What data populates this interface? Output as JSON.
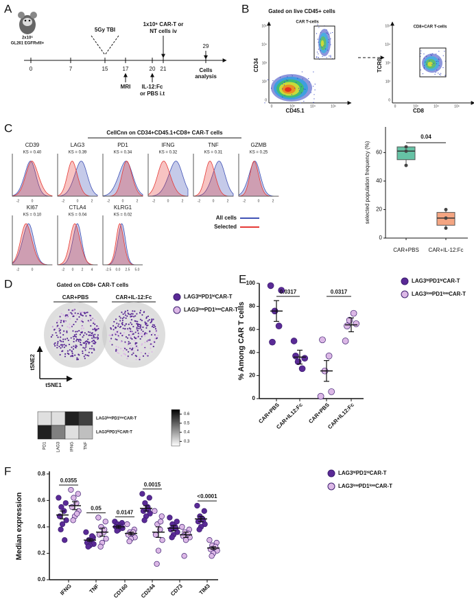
{
  "panel_a": {
    "letter": "A",
    "mouse_label": [
      "2x10⁶",
      "GL261 EGFRvIII+"
    ],
    "days": [
      0,
      7,
      15,
      17,
      20,
      21,
      29
    ],
    "tbi": "5Gy TBI",
    "cart": [
      "1x10⁶ CAR-T or",
      "NT cells iv"
    ],
    "mri": "MRI",
    "treatment": [
      "IL-12:Fc",
      "or PBS i.t"
    ],
    "analysis": [
      "Cells",
      "analysis"
    ]
  },
  "panel_b": {
    "letter": "B",
    "title": "Gated on live CD45+ cells",
    "plots": [
      {
        "gate": "CAR T-cells",
        "x_label": "CD45.1",
        "y_label": "CD34"
      },
      {
        "gate": "CD8+CAR T-cells",
        "x_label": "CD8",
        "y_label": "TCRß"
      }
    ],
    "x_ticks": [
      "0",
      "10³",
      "10⁴",
      "10⁵"
    ],
    "y_ticks": [
      "0",
      "10²",
      "10³",
      "10⁴",
      "10⁵"
    ]
  },
  "panel_c": {
    "letter": "C",
    "title": "CellCnn on CD34+CD45.1+CD8+ CAR-T cells",
    "histograms": [
      {
        "marker": "CD39",
        "ks": "KS = 0.40",
        "ticks": [
          "-2",
          "0"
        ]
      },
      {
        "marker": "LAG3",
        "ks": "KS = 0.39",
        "ticks": [
          "-2",
          "0",
          "2"
        ]
      },
      {
        "marker": "PD1",
        "ks": "KS = 0.34",
        "ticks": [
          "-2",
          "0",
          "2"
        ]
      },
      {
        "marker": "IFNG",
        "ks": "KS = 0.32",
        "ticks": [
          "-2",
          "0",
          "2"
        ]
      },
      {
        "marker": "TNF",
        "ks": "KS = 0.31",
        "ticks": [
          "-2",
          "0",
          "2"
        ]
      },
      {
        "marker": "GZMB",
        "ks": "KS = 0.25",
        "ticks": [
          "-2",
          "0",
          "2"
        ]
      },
      {
        "marker": "KI67",
        "ks": "KS = 0.10",
        "ticks": [
          "-2",
          "0"
        ]
      },
      {
        "marker": "CTLA4",
        "ks": "KS = 0.04",
        "ticks": [
          "-2",
          "0",
          "2",
          "4"
        ]
      },
      {
        "marker": "KLRG1",
        "ks": "KS = 0.02",
        "ticks": [
          "-2.5",
          "0.0",
          "2.5",
          "5.0"
        ]
      }
    ],
    "legend": [
      {
        "name": "All cells",
        "color": "#3f51b5"
      },
      {
        "name": "Selected",
        "color": "#e53935"
      }
    ]
  },
  "panel_d": {
    "letter": "D",
    "title": "Gated on CD8+ CAR-T cells",
    "groups": [
      "CAR+PBS",
      "CAR+IL-12:Fc"
    ],
    "axes": [
      "tSNE2",
      "tSNE1"
    ],
    "legend": [
      {
        "name": "LAG3ʰⁱPD1ʰⁱCAR-T",
        "color": "#5a2a96"
      },
      {
        "name": "LAG3ˡᵒʷPD1ˡᵒʷCAR-T",
        "color": "#dcb8e6"
      }
    ]
  },
  "panel_e": {
    "letter": "E"
  },
  "panel_f": {
    "letter": "F"
  },
  "chart_data": [
    {
      "type": "box",
      "y_label": "selected population frequency (%)",
      "categories": [
        "CAR+PBS",
        "CAR+IL-12:Fc"
      ],
      "colors": [
        "#66c2a5",
        "#f4a582"
      ],
      "boxes": [
        {
          "min": 51,
          "q1": 55,
          "median": 61,
          "q3": 64,
          "max": 65
        },
        {
          "min": 6,
          "q1": 9,
          "median": 14,
          "q3": 18,
          "max": 21
        }
      ],
      "points": [
        [
          51,
          61,
          64
        ],
        [
          7,
          14,
          20
        ]
      ],
      "p_value": "0.04",
      "ylim": [
        0,
        78
      ],
      "yticks": [
        0,
        20,
        40,
        60
      ]
    },
    {
      "type": "heatmap",
      "columns": [
        "PD1",
        "LAG3",
        "IFNG",
        "TNF"
      ],
      "rows": [
        "LAG3ˡᵒʷPD1ˡᵒʷCAR-T",
        "LAG3ʰⁱPD1ʰⁱCAR-T"
      ],
      "values": [
        [
          0.3,
          0.3,
          0.6,
          0.55
        ],
        [
          0.6,
          0.45,
          0.3,
          0.35
        ]
      ],
      "zlim": [
        0.25,
        0.65
      ],
      "colorbar_ticks": [
        0.6,
        0.5,
        0.4,
        0.3
      ]
    },
    {
      "type": "dot",
      "y_label": "% Among CAR T cells",
      "categories": [
        "CAR+PBS",
        "CAR+IL12:Fc",
        "CAR+PBS",
        "CAR+IL12:Fc"
      ],
      "series": [
        {
          "name": "LAG3ʰⁱPD1ʰⁱCAR-T",
          "color": "#5a2a96",
          "values": [
            [
              98,
              94,
              76,
              63,
              49
            ],
            [
              50,
              35,
              32,
              26,
              37
            ],
            null,
            null
          ],
          "means": [
            76,
            36,
            null,
            null
          ],
          "errors": [
            9,
            6,
            null,
            null
          ]
        },
        {
          "name": "LAG3ˡᵒʷPD1ˡᵒʷCAR-T",
          "color": "#dcb8e6",
          "values": [
            null,
            null,
            [
              2,
              6,
              24,
              37,
              51
            ],
            [
              50,
              65,
              68,
              74,
              63
            ]
          ],
          "means": [
            null,
            null,
            24,
            64
          ],
          "errors": [
            null,
            null,
            9,
            6
          ]
        }
      ],
      "p_values": [
        "0.0317",
        "0.0317"
      ],
      "ylim": [
        0,
        100
      ],
      "yticks": [
        0,
        20,
        40,
        60,
        80,
        100
      ]
    },
    {
      "type": "dot",
      "y_label": "Median expression",
      "categories": [
        "IFNG",
        "TNF",
        "CD160",
        "CD244",
        "CD73",
        "TIM3"
      ],
      "series": [
        {
          "name": "LAG3ʰⁱPD1ʰⁱCAR-T",
          "color": "#5a2a96",
          "values": [
            [
              0.62,
              0.58,
              0.55,
              0.52,
              0.48,
              0.45,
              0.42,
              0.38,
              0.3
            ],
            [
              0.36,
              0.32,
              0.3,
              0.29,
              0.28,
              0.27,
              0.26,
              0.25,
              0.33
            ],
            [
              0.44,
              0.43,
              0.42,
              0.41,
              0.4,
              0.39,
              0.38,
              0.37,
              0.4
            ],
            [
              0.65,
              0.62,
              0.58,
              0.55,
              0.52,
              0.5,
              0.48,
              0.45,
              0.53
            ],
            [
              0.47,
              0.44,
              0.42,
              0.4,
              0.38,
              0.36,
              0.34,
              0.32,
              0.39
            ],
            [
              0.56,
              0.52,
              0.48,
              0.46,
              0.44,
              0.42,
              0.4,
              0.38,
              0.45
            ]
          ],
          "means": [
            0.49,
            0.3,
            0.4,
            0.54,
            0.39,
            0.46
          ],
          "errors": [
            0.03,
            0.01,
            0.01,
            0.02,
            0.02,
            0.02
          ]
        },
        {
          "name": "LAG3ˡᵒʷPD1ˡᵒʷCAR-T",
          "color": "#dcb8e6",
          "values": [
            [
              0.68,
              0.65,
              0.62,
              0.58,
              0.55,
              0.52,
              0.48,
              0.45,
              0.5
            ],
            [
              0.47,
              0.44,
              0.4,
              0.36,
              0.34,
              0.31,
              0.28,
              0.25,
              0.38
            ],
            [
              0.42,
              0.38,
              0.36,
              0.35,
              0.34,
              0.32,
              0.31,
              0.29,
              0.36
            ],
            [
              0.52,
              0.48,
              0.42,
              0.38,
              0.34,
              0.3,
              0.22,
              0.12,
              0.44
            ],
            [
              0.4,
              0.38,
              0.36,
              0.34,
              0.33,
              0.32,
              0.3,
              0.18,
              0.35
            ],
            [
              0.3,
              0.28,
              0.26,
              0.24,
              0.23,
              0.22,
              0.2,
              0.18,
              0.25
            ]
          ],
          "means": [
            0.56,
            0.36,
            0.35,
            0.36,
            0.34,
            0.24
          ],
          "errors": [
            0.03,
            0.03,
            0.01,
            0.04,
            0.02,
            0.01
          ]
        }
      ],
      "p_values": [
        "0.0355",
        "0.05",
        "0.0147",
        "0.0015",
        null,
        "<0.0001"
      ],
      "ylim": [
        0,
        0.82
      ],
      "yticks": [
        {
          "value": 0,
          "label": "0.0"
        },
        0.2,
        0.4,
        0.6,
        0.8
      ]
    }
  ]
}
